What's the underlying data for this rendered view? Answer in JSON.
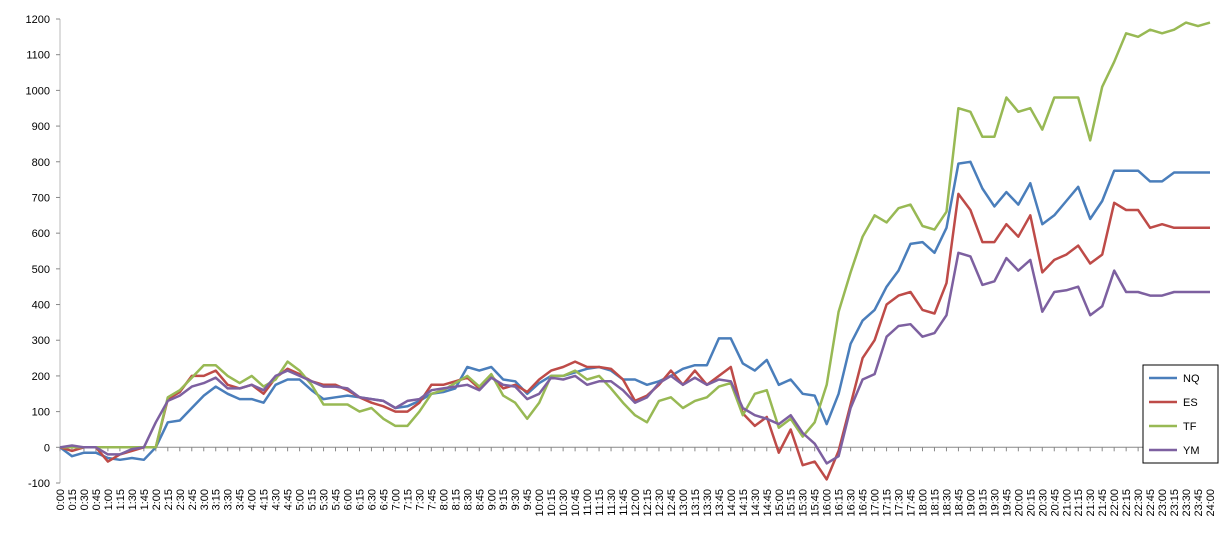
{
  "chart_data": {
    "type": "line",
    "categories": [
      "0:00",
      "0:15",
      "0:30",
      "0:45",
      "1:00",
      "1:15",
      "1:30",
      "1:45",
      "2:00",
      "2:15",
      "2:30",
      "2:45",
      "3:00",
      "3:15",
      "3:30",
      "3:45",
      "4:00",
      "4:15",
      "4:30",
      "4:45",
      "5:00",
      "5:15",
      "5:30",
      "5:45",
      "6:00",
      "6:15",
      "6:30",
      "6:45",
      "7:00",
      "7:15",
      "7:30",
      "7:45",
      "8:00",
      "8:15",
      "8:30",
      "8:45",
      "9:00",
      "9:15",
      "9:30",
      "9:45",
      "10:00",
      "10:15",
      "10:30",
      "10:45",
      "11:00",
      "11:15",
      "11:30",
      "11:45",
      "12:00",
      "12:15",
      "12:30",
      "12:45",
      "13:00",
      "13:15",
      "13:30",
      "13:45",
      "14:00",
      "14:15",
      "14:30",
      "14:45",
      "15:00",
      "15:15",
      "15:30",
      "15:45",
      "16:00",
      "16:15",
      "16:30",
      "16:45",
      "17:00",
      "17:15",
      "17:30",
      "17:45",
      "18:00",
      "18:15",
      "18:30",
      "18:45",
      "19:00",
      "19:15",
      "19:30",
      "19:45",
      "20:00",
      "20:15",
      "20:30",
      "20:45",
      "21:00",
      "21:15",
      "21:30",
      "21:45",
      "22:00",
      "22:15",
      "22:30",
      "22:45",
      "23:00",
      "23:15",
      "23:30",
      "23:45",
      "24:00"
    ],
    "series": [
      {
        "name": "NQ",
        "color": "#4a7ebb",
        "values": [
          0,
          -25,
          -15,
          -15,
          -30,
          -35,
          -30,
          -35,
          0,
          70,
          75,
          110,
          145,
          170,
          150,
          135,
          135,
          125,
          175,
          190,
          190,
          160,
          135,
          140,
          145,
          140,
          135,
          130,
          110,
          115,
          130,
          150,
          155,
          165,
          225,
          215,
          225,
          190,
          185,
          150,
          180,
          200,
          200,
          210,
          220,
          225,
          215,
          190,
          190,
          175,
          185,
          200,
          220,
          230,
          230,
          305,
          305,
          235,
          215,
          245,
          175,
          190,
          150,
          145,
          65,
          150,
          290,
          355,
          385,
          450,
          495,
          570,
          575,
          545,
          615,
          795,
          800,
          725,
          675,
          715,
          680,
          740,
          625,
          650,
          690,
          730,
          640,
          690,
          775,
          775,
          775,
          745,
          745,
          770,
          770,
          770,
          770
        ]
      },
      {
        "name": "ES",
        "color": "#be4b48",
        "values": [
          0,
          -10,
          0,
          0,
          -40,
          -20,
          -10,
          0,
          0,
          135,
          155,
          200,
          200,
          215,
          175,
          165,
          175,
          150,
          195,
          220,
          205,
          185,
          175,
          175,
          160,
          140,
          125,
          115,
          100,
          100,
          125,
          175,
          175,
          185,
          195,
          165,
          200,
          165,
          175,
          155,
          190,
          215,
          225,
          240,
          225,
          225,
          220,
          190,
          130,
          145,
          175,
          215,
          175,
          215,
          175,
          200,
          225,
          95,
          60,
          85,
          -15,
          50,
          -50,
          -40,
          -90,
          -10,
          120,
          250,
          300,
          400,
          425,
          435,
          385,
          375,
          460,
          710,
          665,
          575,
          575,
          625,
          590,
          650,
          490,
          525,
          540,
          565,
          515,
          540,
          685,
          665,
          665,
          615,
          625,
          615,
          615,
          615,
          615
        ]
      },
      {
        "name": "TF",
        "color": "#98b954",
        "values": [
          0,
          0,
          0,
          0,
          0,
          0,
          0,
          0,
          0,
          140,
          160,
          195,
          230,
          230,
          200,
          180,
          200,
          170,
          190,
          240,
          215,
          175,
          120,
          120,
          120,
          100,
          110,
          80,
          60,
          60,
          100,
          150,
          160,
          180,
          200,
          170,
          205,
          145,
          125,
          80,
          125,
          200,
          200,
          215,
          190,
          200,
          165,
          125,
          90,
          70,
          130,
          140,
          110,
          130,
          140,
          170,
          180,
          90,
          150,
          160,
          55,
          80,
          30,
          70,
          175,
          380,
          490,
          590,
          650,
          630,
          670,
          680,
          620,
          610,
          660,
          950,
          940,
          870,
          870,
          980,
          940,
          950,
          890,
          980,
          980,
          980,
          860,
          1010,
          1080,
          1160,
          1150,
          1170,
          1160,
          1170,
          1190,
          1180,
          1190
        ]
      },
      {
        "name": "YM",
        "color": "#7d60a0",
        "values": [
          0,
          5,
          0,
          0,
          -20,
          -20,
          -5,
          0,
          70,
          130,
          145,
          170,
          180,
          195,
          165,
          165,
          175,
          160,
          200,
          215,
          200,
          185,
          170,
          170,
          165,
          140,
          135,
          130,
          110,
          130,
          135,
          160,
          165,
          170,
          175,
          160,
          195,
          175,
          170,
          135,
          150,
          195,
          190,
          200,
          175,
          185,
          185,
          160,
          125,
          140,
          180,
          200,
          175,
          195,
          175,
          190,
          185,
          110,
          90,
          80,
          65,
          90,
          40,
          10,
          -45,
          -25,
          110,
          190,
          205,
          310,
          340,
          345,
          310,
          320,
          370,
          545,
          535,
          455,
          465,
          530,
          495,
          525,
          380,
          435,
          440,
          450,
          370,
          395,
          495,
          435,
          435,
          425,
          425,
          435,
          435,
          435,
          435
        ]
      }
    ],
    "ylim": [
      -100,
      1200
    ],
    "yticks": [
      -100,
      0,
      100,
      200,
      300,
      400,
      500,
      600,
      700,
      800,
      900,
      1000,
      1100,
      1200
    ],
    "legend": "right"
  }
}
